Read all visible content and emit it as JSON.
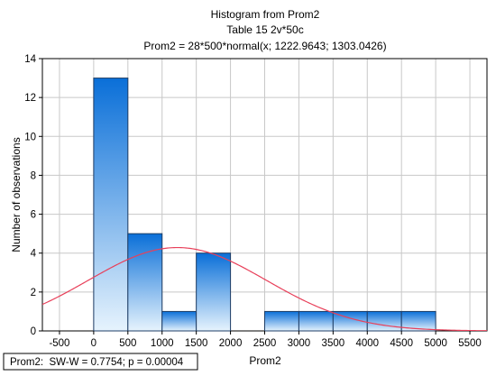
{
  "chart_data": {
    "type": "bar",
    "title": "Histogram from Prom2",
    "subtitle": "Table 15 2v*50c",
    "formula": "Prom2 = 28*500*normal(x; 1222.9643; 1303.0426)",
    "xlabel": "Prom2",
    "ylabel": "Number of observations",
    "xlim": [
      -750,
      5750
    ],
    "ylim": [
      0,
      14
    ],
    "x_ticks": [
      -500,
      0,
      500,
      1000,
      1500,
      2000,
      2500,
      3000,
      3500,
      4000,
      4500,
      5000,
      5500
    ],
    "y_ticks": [
      0,
      2,
      4,
      6,
      8,
      10,
      12,
      14
    ],
    "grid": true,
    "bins": [
      {
        "from": 0,
        "to": 500,
        "count": 13
      },
      {
        "from": 500,
        "to": 1000,
        "count": 5
      },
      {
        "from": 1000,
        "to": 1500,
        "count": 1
      },
      {
        "from": 1500,
        "to": 2000,
        "count": 4
      },
      {
        "from": 2000,
        "to": 2500,
        "count": 0
      },
      {
        "from": 2500,
        "to": 3000,
        "count": 1
      },
      {
        "from": 3000,
        "to": 3500,
        "count": 1
      },
      {
        "from": 3500,
        "to": 4000,
        "count": 1
      },
      {
        "from": 4000,
        "to": 4500,
        "count": 1
      },
      {
        "from": 4500,
        "to": 5000,
        "count": 1
      }
    ],
    "normal_fit": {
      "n": 28,
      "bin_width": 500,
      "mean": 1222.9643,
      "sd": 1303.0426,
      "color": "#e8405a"
    },
    "bar_color_top": "#0a6fd8",
    "bar_color_bottom": "#e6f3fd"
  },
  "stats_box": "Prom2:  SW-W = 0.7754; p = 0.00004"
}
